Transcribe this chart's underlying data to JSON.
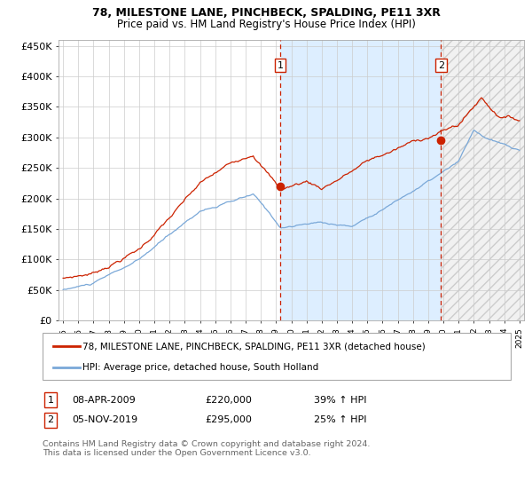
{
  "title": "78, MILESTONE LANE, PINCHBECK, SPALDING, PE11 3XR",
  "subtitle": "Price paid vs. HM Land Registry's House Price Index (HPI)",
  "legend_line1": "78, MILESTONE LANE, PINCHBECK, SPALDING, PE11 3XR (detached house)",
  "legend_line2": "HPI: Average price, detached house, South Holland",
  "annotation1_label": "1",
  "annotation1_date": "08-APR-2009",
  "annotation1_price": "£220,000",
  "annotation1_hpi": "39% ↑ HPI",
  "annotation2_label": "2",
  "annotation2_date": "05-NOV-2019",
  "annotation2_price": "£295,000",
  "annotation2_hpi": "25% ↑ HPI",
  "footnote": "Contains HM Land Registry data © Crown copyright and database right 2024.\nThis data is licensed under the Open Government Licence v3.0.",
  "hpi_color": "#7aa8d8",
  "price_color": "#cc2200",
  "marker_color": "#cc2200",
  "vline_color": "#cc2200",
  "grid_color": "#cccccc",
  "bg_color": "#ffffff",
  "shaded_bg": "#ddeeff",
  "ylim": [
    0,
    460000
  ],
  "yticks": [
    0,
    50000,
    100000,
    150000,
    200000,
    250000,
    300000,
    350000,
    400000,
    450000
  ],
  "x_start_year": 1995,
  "x_end_year": 2025,
  "sale1_year": 2009.27,
  "sale1_price": 220000,
  "sale2_year": 2019.84,
  "sale2_price": 295000
}
